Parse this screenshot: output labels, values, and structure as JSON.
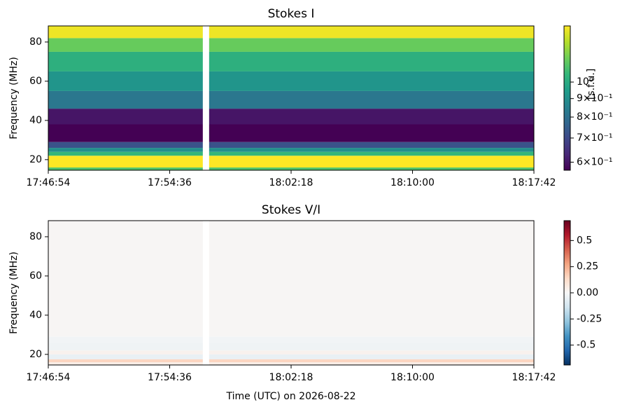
{
  "chart_data": [
    {
      "type": "heatmap",
      "title": "Stokes I",
      "ylabel": "Frequency (MHz)",
      "xlim": [
        0,
        1848
      ],
      "xticks": [
        {
          "value": 0,
          "label": "17:46:54"
        },
        {
          "value": 462,
          "label": "17:54:36"
        },
        {
          "value": 924,
          "label": "18:02:18"
        },
        {
          "value": 1386,
          "label": "18:10:00"
        },
        {
          "value": 1848,
          "label": "18:17:42"
        }
      ],
      "ylim": [
        14.6,
        88.2
      ],
      "yticks": [
        20,
        40,
        60,
        80
      ],
      "bands": [
        14.6,
        16,
        22,
        24,
        26,
        29,
        38,
        46,
        55,
        65,
        75,
        82,
        88.2
      ],
      "values": [
        1.1,
        1.43,
        1.05,
        0.9,
        0.72,
        0.57,
        0.6,
        0.82,
        0.92,
        1.02,
        1.15,
        1.4
      ],
      "gap": [
        588,
        612
      ],
      "colormap": "viridis",
      "clog": true,
      "clim": [
        0.57,
        1.43
      ],
      "cticks": [
        {
          "value": 0.6,
          "label": "6×10⁻¹"
        },
        {
          "value": 0.7,
          "label": "7×10⁻¹"
        },
        {
          "value": 0.8,
          "label": "8×10⁻¹"
        },
        {
          "value": 0.9,
          "label": "9×10⁻¹"
        },
        {
          "value": 1,
          "label": "10⁰"
        }
      ],
      "clabel": "[s.f.u.]"
    },
    {
      "type": "heatmap",
      "title": "Stokes V/I",
      "ylabel": "Frequency (MHz)",
      "xlabel": "Time (UTC) on 2026-08-22",
      "xlim": [
        0,
        1848
      ],
      "xticks": [
        {
          "value": 0,
          "label": "17:46:54"
        },
        {
          "value": 462,
          "label": "17:54:36"
        },
        {
          "value": 924,
          "label": "18:02:18"
        },
        {
          "value": 1386,
          "label": "18:10:00"
        },
        {
          "value": 1848,
          "label": "18:17:42"
        }
      ],
      "ylim": [
        14.6,
        88.2
      ],
      "yticks": [
        20,
        40,
        60,
        80
      ],
      "bands": [
        14.6,
        16,
        17.5,
        20,
        22,
        26,
        29,
        88.2
      ],
      "values": [
        0.05,
        0.15,
        -0.05,
        0.03,
        -0.03,
        -0.02,
        0.01
      ],
      "gap": [
        588,
        612
      ],
      "colormap": "RdBu_r",
      "clog": false,
      "clim": [
        -0.69,
        0.69
      ],
      "cticks": [
        0.5,
        0.25,
        {
          "value": 0,
          "label": "0.00"
        },
        -0.25,
        -0.5
      ]
    }
  ]
}
